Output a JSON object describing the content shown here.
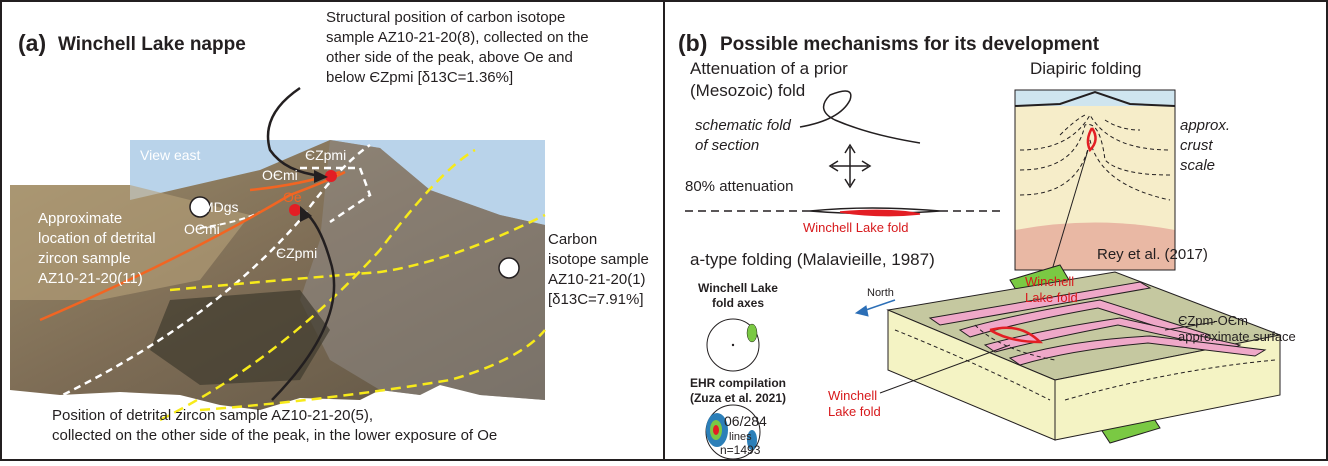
{
  "panel_a": {
    "label": "(a)",
    "title": "Winchell Lake nappe",
    "structural_note": [
      "Structural position of carbon isotope",
      "sample AZ10-21-20(8), collected on the",
      "other side of the peak, above Oe and",
      "below ЄZpmi [δ13C=1.36%]"
    ],
    "view": "View east",
    "units": {
      "czpmi_top": "ЄZpmi",
      "ocmi_top": "OЄmi",
      "oe": "Oe",
      "mdgs": "MDgs",
      "ocmi_bottom": "OЄmi",
      "czpmi_bottom": "ЄZpmi"
    },
    "zircon_11_note": [
      "Approximate",
      "location of detrital",
      "zircon sample",
      "AZ10-21-20(11)"
    ],
    "carbon_1_note": [
      "Carbon",
      "isotope sample",
      "AZ10-21-20(1)",
      "[δ13C=7.91%]"
    ],
    "zircon_5_note": [
      "Position of detrital zircon sample AZ10-21-20(5),",
      "collected on the other side of the peak, in the lower exposure of Oe"
    ]
  },
  "panel_b": {
    "label": "(b)",
    "title": "Possible mechanisms for its development",
    "attenuation": {
      "title": [
        "Attenuation of a prior",
        "(Mesozoic) fold"
      ],
      "schematic": [
        "schematic fold",
        "of section"
      ],
      "percent": "80% attenuation",
      "fold": "Winchell Lake fold"
    },
    "diapiric": {
      "title": "Diapiric folding",
      "scale": [
        "approx.",
        "crust",
        "scale"
      ],
      "source": "Rey et al. (2017)",
      "fold": [
        "Winchell",
        "Lake fold"
      ]
    },
    "a_type": {
      "title": "a-type folding (Malavieille, 1987)",
      "axes_title": [
        "Winchell Lake",
        "fold axes"
      ],
      "ehr_title": [
        "EHR compilation",
        "(Zuza et al. 2021)"
      ],
      "mean": "06/284",
      "lines": "lines",
      "n": "n=1493",
      "north": "North",
      "surface": [
        "ЄZpm-OЄm",
        "approximate surface"
      ],
      "fold": [
        "Winchell",
        "Lake fold"
      ]
    }
  }
}
